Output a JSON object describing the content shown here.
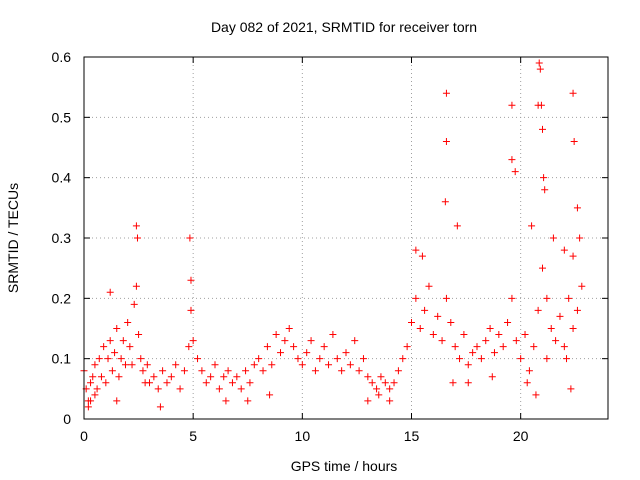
{
  "chart_data": {
    "type": "scatter",
    "title": "Day 082 of 2021, SRMTID for receiver torn",
    "xlabel": "GPS time / hours",
    "ylabel": "SRMTID / TECUs",
    "xlim": [
      0,
      24
    ],
    "ylim": [
      0,
      0.6
    ],
    "xticks": [
      0,
      5,
      10,
      15,
      20
    ],
    "xtick_labels": [
      "0",
      "5",
      "10",
      "15",
      "20"
    ],
    "yticks": [
      0,
      0.1,
      0.2,
      0.3,
      0.4,
      0.5,
      0.6
    ],
    "ytick_labels": [
      "0",
      "0.1",
      "0.2",
      "0.3",
      "0.4",
      "0.5",
      "0.6"
    ],
    "grid": true,
    "marker": "+",
    "series": [
      {
        "name": "SRMTID",
        "color": "#ff0000",
        "x": [
          0.0,
          0.1,
          0.2,
          0.3,
          0.4,
          0.5,
          0.6,
          0.7,
          0.8,
          0.9,
          1.0,
          1.1,
          1.2,
          1.3,
          1.4,
          1.5,
          1.6,
          1.7,
          1.8,
          1.9,
          2.0,
          2.1,
          2.2,
          2.3,
          2.4,
          2.5,
          2.6,
          2.7,
          2.8,
          2.9,
          3.0,
          3.2,
          3.4,
          3.6,
          3.8,
          4.0,
          4.2,
          4.4,
          4.6,
          4.8,
          4.9,
          5.0,
          5.2,
          5.4,
          5.6,
          5.8,
          6.0,
          6.2,
          6.4,
          6.6,
          6.8,
          7.0,
          7.2,
          7.4,
          7.6,
          7.8,
          8.0,
          8.2,
          8.4,
          8.6,
          8.8,
          9.0,
          9.2,
          9.4,
          9.6,
          9.8,
          10.0,
          10.2,
          10.4,
          10.6,
          10.8,
          11.0,
          11.2,
          11.4,
          11.6,
          11.8,
          12.0,
          12.2,
          12.4,
          12.6,
          12.8,
          13.0,
          13.2,
          13.4,
          13.6,
          13.8,
          14.0,
          14.2,
          14.4,
          14.6,
          14.8,
          15.0,
          15.2,
          15.4,
          15.6,
          15.8,
          16.0,
          16.2,
          16.4,
          16.6,
          16.8,
          17.0,
          17.2,
          17.4,
          17.6,
          17.8,
          18.0,
          18.2,
          18.4,
          18.6,
          18.8,
          19.0,
          19.2,
          19.4,
          19.6,
          19.8,
          20.0,
          20.2,
          20.4,
          20.6,
          20.8,
          21.0,
          21.2,
          21.4,
          21.6,
          21.8,
          22.0,
          22.2,
          22.4,
          22.6,
          22.8,
          0.3,
          1.2,
          2.4,
          2.45,
          4.85,
          4.9,
          15.2,
          15.5,
          16.6,
          16.6,
          16.55,
          17.1,
          19.6,
          19.6,
          19.75,
          20.5,
          20.8,
          20.85,
          20.9,
          20.95,
          21.0,
          21.05,
          21.1,
          21.5,
          22.0,
          22.4,
          22.45,
          22.6,
          22.7,
          0.2,
          0.5,
          1.5,
          3.5,
          6.5,
          7.5,
          8.5,
          13.0,
          13.5,
          14.0,
          16.9,
          17.6,
          18.7,
          20.3,
          20.7,
          21.2,
          22.3,
          22.4,
          22.1
        ],
        "y": [
          0.08,
          0.05,
          0.03,
          0.06,
          0.07,
          0.09,
          0.05,
          0.1,
          0.07,
          0.12,
          0.06,
          0.1,
          0.13,
          0.08,
          0.11,
          0.15,
          0.07,
          0.1,
          0.13,
          0.09,
          0.16,
          0.12,
          0.09,
          0.19,
          0.22,
          0.14,
          0.1,
          0.08,
          0.06,
          0.09,
          0.06,
          0.07,
          0.05,
          0.08,
          0.06,
          0.07,
          0.09,
          0.05,
          0.08,
          0.12,
          0.18,
          0.13,
          0.1,
          0.08,
          0.06,
          0.07,
          0.09,
          0.05,
          0.07,
          0.08,
          0.06,
          0.07,
          0.05,
          0.08,
          0.06,
          0.09,
          0.1,
          0.08,
          0.12,
          0.09,
          0.14,
          0.11,
          0.13,
          0.15,
          0.12,
          0.1,
          0.09,
          0.11,
          0.13,
          0.08,
          0.1,
          0.12,
          0.09,
          0.14,
          0.1,
          0.08,
          0.11,
          0.09,
          0.13,
          0.08,
          0.1,
          0.07,
          0.06,
          0.05,
          0.07,
          0.06,
          0.05,
          0.06,
          0.08,
          0.1,
          0.12,
          0.16,
          0.2,
          0.15,
          0.18,
          0.22,
          0.14,
          0.17,
          0.13,
          0.2,
          0.16,
          0.12,
          0.1,
          0.14,
          0.09,
          0.11,
          0.12,
          0.1,
          0.13,
          0.15,
          0.11,
          0.14,
          0.12,
          0.16,
          0.2,
          0.13,
          0.1,
          0.14,
          0.08,
          0.12,
          0.18,
          0.25,
          0.2,
          0.15,
          0.13,
          0.17,
          0.12,
          0.2,
          0.15,
          0.18,
          0.22,
          0.03,
          0.21,
          0.32,
          0.3,
          0.3,
          0.23,
          0.28,
          0.27,
          0.54,
          0.46,
          0.36,
          0.32,
          0.52,
          0.43,
          0.41,
          0.32,
          0.52,
          0.59,
          0.58,
          0.52,
          0.48,
          0.4,
          0.38,
          0.3,
          0.28,
          0.54,
          0.46,
          0.35,
          0.3,
          0.02,
          0.04,
          0.03,
          0.02,
          0.03,
          0.03,
          0.04,
          0.03,
          0.04,
          0.03,
          0.06,
          0.06,
          0.07,
          0.06,
          0.04,
          0.1,
          0.05,
          0.27,
          0.1
        ]
      }
    ]
  }
}
